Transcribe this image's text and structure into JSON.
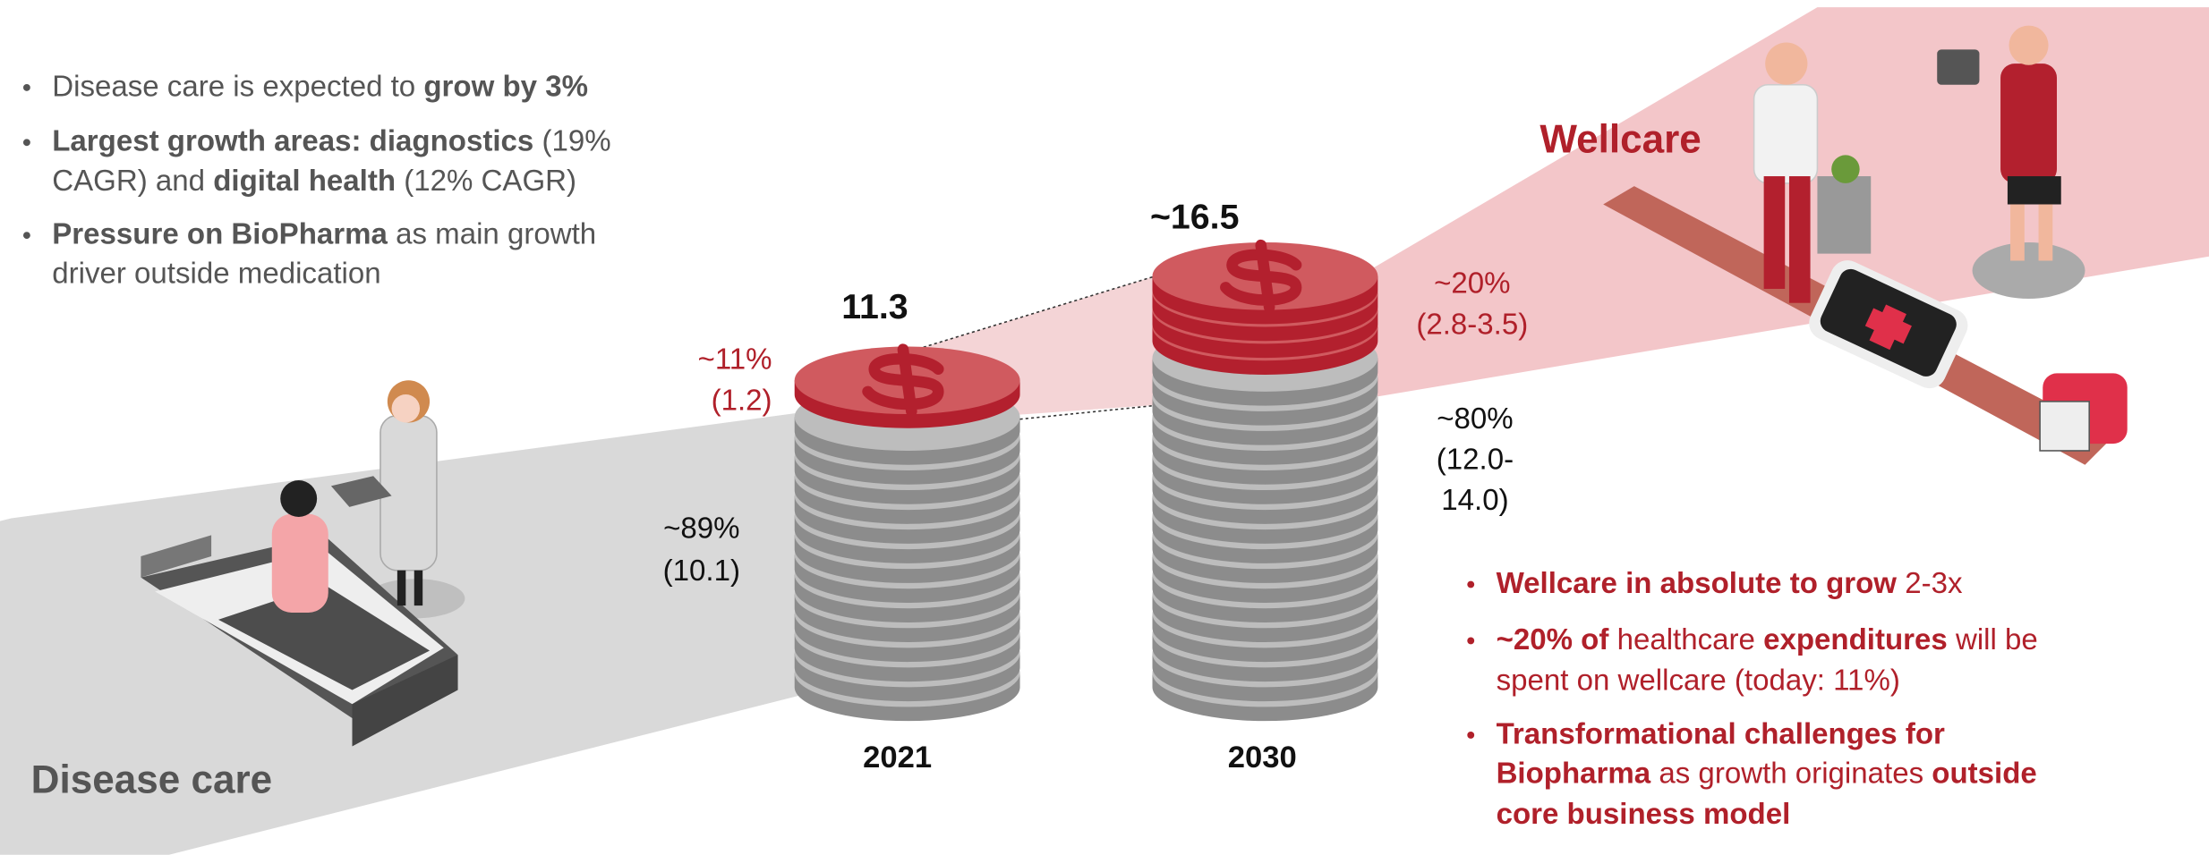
{
  "left_bullets": [
    [
      [
        {
          "text": "Disease care is expected to ",
          "bold": false
        },
        {
          "text": "grow by 3%",
          "bold": true
        }
      ]
    ],
    [
      [
        {
          "text": "Largest growth areas: diagnostics",
          "bold": true
        },
        {
          "text": " (19%",
          "bold": false
        }
      ],
      [
        {
          "text": "CAGR) and ",
          "bold": false
        },
        {
          "text": "digital health",
          "bold": true
        },
        {
          "text": " (12% CAGR)",
          "bold": false
        }
      ]
    ],
    [
      [
        {
          "text": "Pressure on BioPharma",
          "bold": true
        },
        {
          "text": " as main growth",
          "bold": false
        }
      ],
      [
        {
          "text": "driver outside medication",
          "bold": false
        }
      ]
    ]
  ],
  "right_bullets": [
    [
      [
        {
          "text": "Wellcare in absolute to grow",
          "bold": true
        },
        {
          "text": " 2-3x",
          "bold": false
        }
      ]
    ],
    [
      [
        {
          "text": "~20% of",
          "bold": true
        },
        {
          "text": " healthcare ",
          "bold": false
        },
        {
          "text": "expenditures",
          "bold": true
        },
        {
          "text": " will be",
          "bold": false
        }
      ],
      [
        {
          "text": "spent on wellcare (today: 11%)",
          "bold": false
        }
      ]
    ],
    [
      [
        {
          "text": "Transformational challenges for",
          "bold": true
        }
      ],
      [
        {
          "text": "Biopharma",
          "bold": true
        },
        {
          "text": " as growth originates ",
          "bold": false
        },
        {
          "text": "outside",
          "bold": true
        }
      ],
      [
        {
          "text": "core business model",
          "bold": true
        }
      ]
    ]
  ],
  "wellcare_title": "Wellcare",
  "disease_care_title": "Disease care",
  "stacks": [
    {
      "year": "2021",
      "total": "11.3",
      "red_share": "~11%",
      "red_value": "(1.2)",
      "gray_share": "~89%",
      "gray_value": [
        "(10.1)"
      ]
    },
    {
      "year": "2030",
      "total": "~16.5",
      "red_share": "~20%",
      "red_value": "(2.8-3.5)",
      "gray_share": "~80%",
      "gray_value": [
        "(12.0-",
        "14.0)"
      ]
    }
  ]
}
